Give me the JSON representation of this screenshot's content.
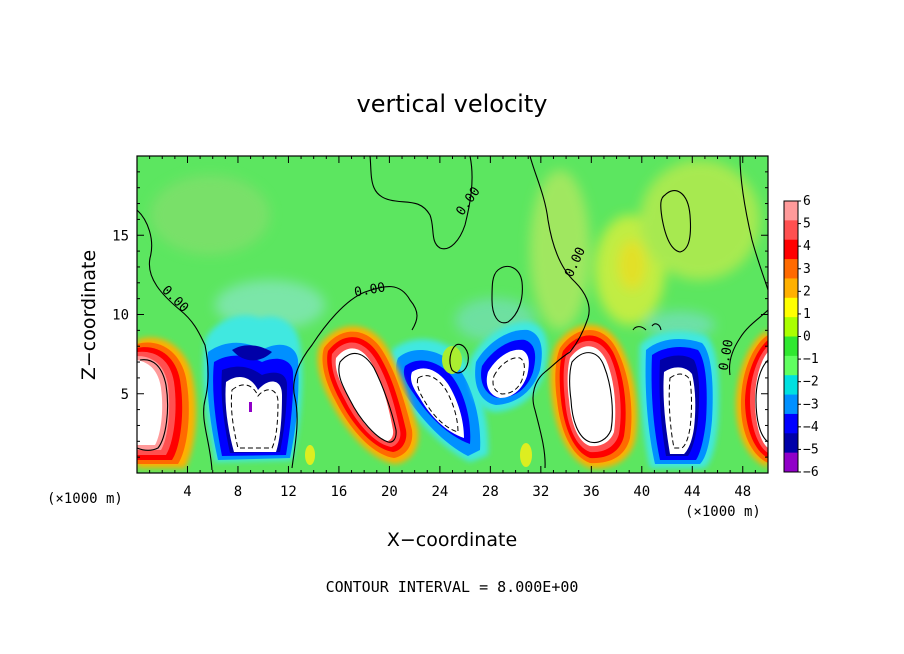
{
  "chart_data": {
    "type": "heatmap",
    "title": "vertical velocity",
    "xlabel": "X−coordinate",
    "ylabel": "Z−coordinate",
    "x_unit_left": "(×1000 m)",
    "x_unit_right": "(×1000 m)",
    "xlim": [
      0,
      50
    ],
    "ylim": [
      0,
      20
    ],
    "x_ticks": [
      4,
      8,
      12,
      16,
      20,
      24,
      28,
      32,
      36,
      40,
      44,
      48
    ],
    "y_ticks": [
      5,
      10,
      15
    ],
    "colorbar": {
      "ticks": [
        "6",
        "5",
        "4",
        "3",
        "2",
        "1",
        "0",
        "−1",
        "−2",
        "−3",
        "−4",
        "−5",
        "−6"
      ],
      "colors": [
        "#ff9a9a",
        "#ff5050",
        "#ff0000",
        "#ff6a00",
        "#ffb000",
        "#ffff00",
        "#aaff00",
        "#30e830",
        "#60ff60",
        "#00e0e0",
        "#0090ff",
        "#0000ff",
        "#0000a8",
        "#9000c8"
      ]
    },
    "contour_interval_label": "CONTOUR INTERVAL = 8.000E+00",
    "contour_labels": [
      {
        "text": "0.00",
        "x": 2.8,
        "z": 10.8,
        "angle": 45
      },
      {
        "text": "0.00",
        "x": 18.5,
        "z": 11.3,
        "angle": -10
      },
      {
        "text": "0.00",
        "x": 26.5,
        "z": 17.0,
        "angle": -55
      },
      {
        "text": "0.00",
        "x": 35.0,
        "z": 13.2,
        "angle": -65
      },
      {
        "text": "0.00",
        "x": 47.0,
        "z": 7.4,
        "angle": -80
      }
    ],
    "background_color": "#5ce660"
  }
}
